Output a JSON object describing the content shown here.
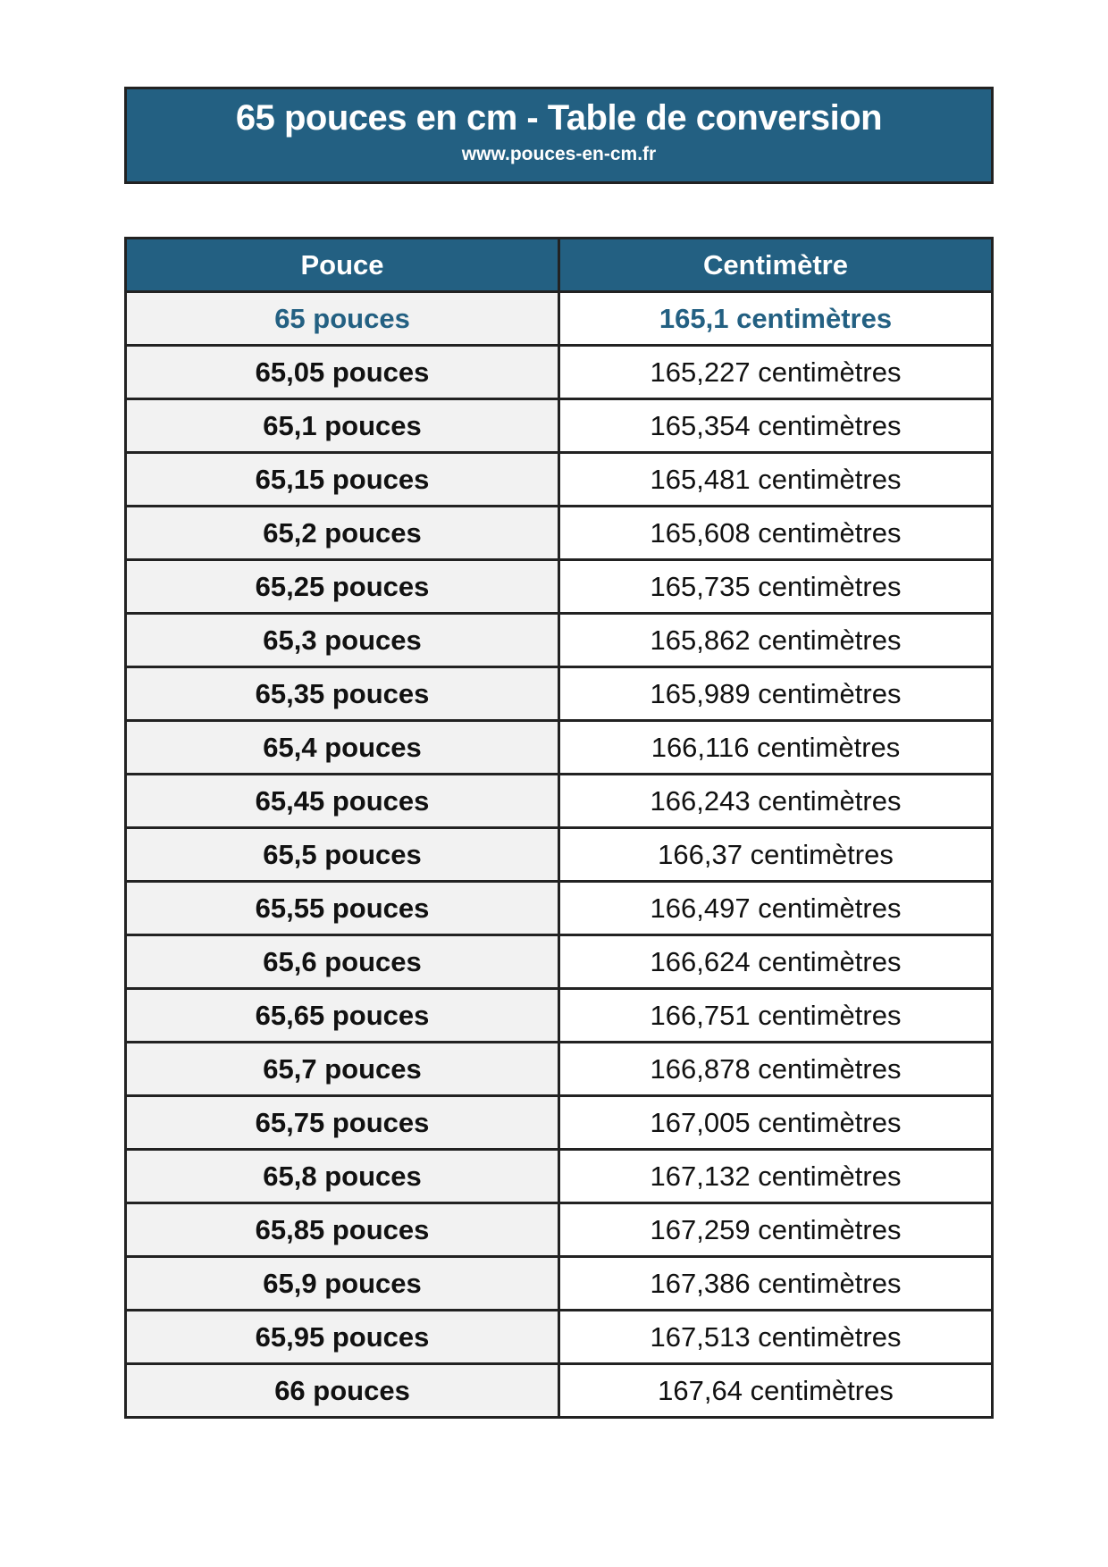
{
  "header": {
    "title": "65 pouces en cm - Table de conversion",
    "url": "www.pouces-en-cm.fr"
  },
  "colors": {
    "accent": "#236082",
    "row_alt": "#f2f2f2"
  },
  "table": {
    "columns": [
      "Pouce",
      "Centimètre"
    ],
    "rows": [
      [
        "65 pouces",
        "165,1 centimètres"
      ],
      [
        "65,05 pouces",
        "165,227 centimètres"
      ],
      [
        "65,1 pouces",
        "165,354 centimètres"
      ],
      [
        "65,15 pouces",
        "165,481 centimètres"
      ],
      [
        "65,2 pouces",
        "165,608 centimètres"
      ],
      [
        "65,25 pouces",
        "165,735 centimètres"
      ],
      [
        "65,3 pouces",
        "165,862 centimètres"
      ],
      [
        "65,35 pouces",
        "165,989 centimètres"
      ],
      [
        "65,4 pouces",
        "166,116 centimètres"
      ],
      [
        "65,45 pouces",
        "166,243 centimètres"
      ],
      [
        "65,5 pouces",
        "166,37 centimètres"
      ],
      [
        "65,55 pouces",
        "166,497 centimètres"
      ],
      [
        "65,6 pouces",
        "166,624 centimètres"
      ],
      [
        "65,65 pouces",
        "166,751 centimètres"
      ],
      [
        "65,7 pouces",
        "166,878 centimètres"
      ],
      [
        "65,75 pouces",
        "167,005 centimètres"
      ],
      [
        "65,8 pouces",
        "167,132 centimètres"
      ],
      [
        "65,85 pouces",
        "167,259 centimètres"
      ],
      [
        "65,9 pouces",
        "167,386 centimètres"
      ],
      [
        "65,95 pouces",
        "167,513 centimètres"
      ],
      [
        "66 pouces",
        "167,64 centimètres"
      ]
    ]
  }
}
